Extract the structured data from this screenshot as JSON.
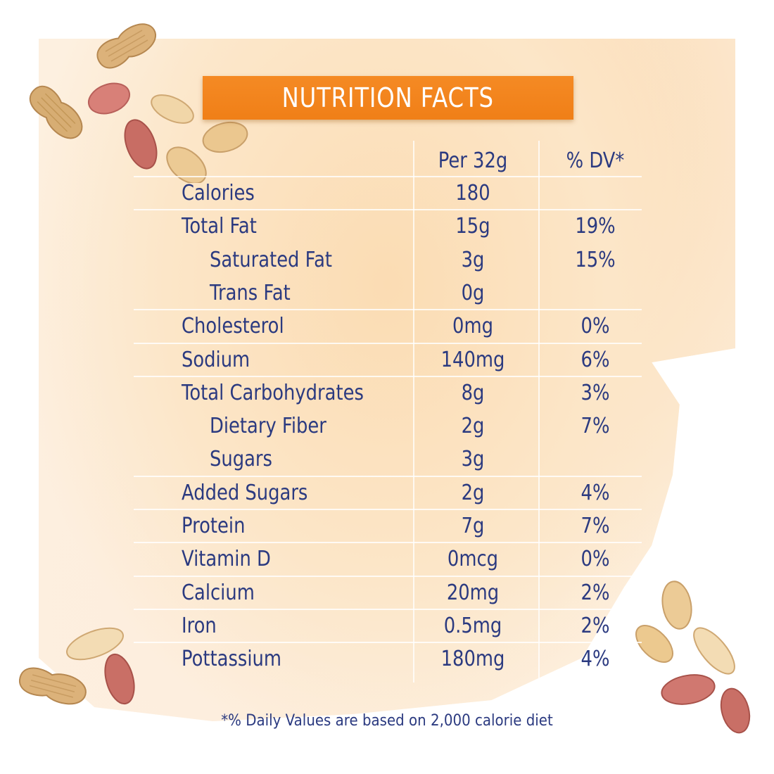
{
  "header": {
    "title": "NUTRITION FACTS"
  },
  "columns": {
    "amount": "Per 32g",
    "dv": "% DV*"
  },
  "rows": [
    {
      "label": "Calories",
      "amount": "180",
      "dv": ""
    },
    {
      "label": "Total Fat",
      "amount": "15g",
      "dv": "19%"
    },
    {
      "label": "Saturated Fat",
      "amount": "3g",
      "dv": "15%"
    },
    {
      "label": "Trans Fat",
      "amount": "0g",
      "dv": ""
    },
    {
      "label": "Cholesterol",
      "amount": "0mg",
      "dv": "0%"
    },
    {
      "label": "Sodium",
      "amount": "140mg",
      "dv": "6%"
    },
    {
      "label": "Total Carbohydrates",
      "amount": "8g",
      "dv": "3%"
    },
    {
      "label": "Dietary Fiber",
      "amount": "2g",
      "dv": "7%"
    },
    {
      "label": "Sugars",
      "amount": "3g",
      "dv": ""
    },
    {
      "label": "Added Sugars",
      "amount": "2g",
      "dv": "4%"
    },
    {
      "label": "Protein",
      "amount": "7g",
      "dv": "7%"
    },
    {
      "label": "Vitamin D",
      "amount": "0mcg",
      "dv": "0%"
    },
    {
      "label": "Calcium",
      "amount": "20mg",
      "dv": "2%"
    },
    {
      "label": "Iron",
      "amount": "0.5mg",
      "dv": "2%"
    },
    {
      "label": "Pottassium",
      "amount": "180mg",
      "dv": "4%"
    }
  ],
  "footnote": "*% Daily Values are based on 2,000 calorie diet",
  "colors": {
    "header_bg": "#f58a24",
    "text": "#2b3a80",
    "background": "#fdf0e0"
  },
  "decorations": [
    "peanut-shell-icon",
    "peanut-kernel-icon",
    "red-skin-peanut-icon"
  ]
}
